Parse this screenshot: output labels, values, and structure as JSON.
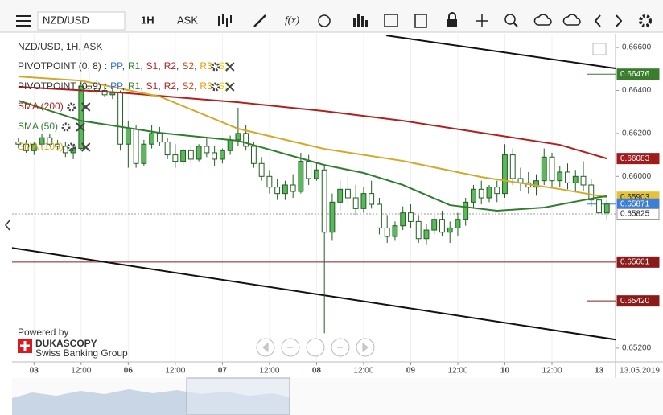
{
  "toolbar": {
    "symbol": "NZD/USD",
    "period": "1H",
    "side": "ASK",
    "fx": "f(x)"
  },
  "chart_data": {
    "type": "candlestick",
    "title": "NZD/USD, 1H, ASK",
    "legend": [
      {
        "name": "PIVOTPOINT (0, 8)",
        "color": "#333333",
        "pivot": true
      },
      {
        "name": "PIVOTPOINT (0, 9)",
        "color": "#333333",
        "pivot": true
      },
      {
        "name": "SMA (200)",
        "color": "#b0201e"
      },
      {
        "name": "SMA (50)",
        "color": "#2f7d2f"
      },
      {
        "name": "SMA (100)",
        "color": "#d4a82a"
      }
    ],
    "pivot_items": [
      {
        "text": ":",
        "color": "#333333"
      },
      {
        "text": "PP",
        "color": "#2f6fd6"
      },
      {
        "text": ",",
        "color": "#333333"
      },
      {
        "text": "R1",
        "color": "#2f7d2f"
      },
      {
        "text": ",",
        "color": "#333333"
      },
      {
        "text": "S1",
        "color": "#c62828"
      },
      {
        "text": ",",
        "color": "#333333"
      },
      {
        "text": "R2",
        "color": "#b0201e"
      },
      {
        "text": ",",
        "color": "#333333"
      },
      {
        "text": "S2",
        "color": "#d84315"
      },
      {
        "text": ",",
        "color": "#333333"
      },
      {
        "text": "R3",
        "color": "#e69a00"
      },
      {
        "text": ",",
        "color": "#333333"
      },
      {
        "text": "S3",
        "color": "#e0d000"
      }
    ],
    "up_color": "#5cb85c",
    "down_color": "#ffffff",
    "wick_color": "#1f5f1f",
    "candles": [
      [
        0.6616,
        0.6618,
        0.6613,
        0.6615
      ],
      [
        0.6615,
        0.6617,
        0.6611,
        0.6612
      ],
      [
        0.6612,
        0.6616,
        0.661,
        0.6615
      ],
      [
        0.6615,
        0.662,
        0.6614,
        0.6618
      ],
      [
        0.6618,
        0.662,
        0.6614,
        0.6615
      ],
      [
        0.6615,
        0.6617,
        0.6612,
        0.6614
      ],
      [
        0.6614,
        0.6616,
        0.6609,
        0.6611
      ],
      [
        0.6611,
        0.6615,
        0.6608,
        0.6613
      ],
      [
        0.6613,
        0.6645,
        0.6612,
        0.6642
      ],
      [
        0.6642,
        0.6649,
        0.6639,
        0.6641
      ],
      [
        0.6641,
        0.6645,
        0.6638,
        0.664
      ],
      [
        0.664,
        0.6643,
        0.6637,
        0.6638
      ],
      [
        0.6638,
        0.6642,
        0.6636,
        0.6639
      ],
      [
        0.6639,
        0.664,
        0.6612,
        0.6615
      ],
      [
        0.6615,
        0.6626,
        0.6604,
        0.6622
      ],
      [
        0.6622,
        0.6624,
        0.6604,
        0.6606
      ],
      [
        0.6606,
        0.6617,
        0.6605,
        0.6615
      ],
      [
        0.6615,
        0.6624,
        0.6613,
        0.662
      ],
      [
        0.662,
        0.6623,
        0.6614,
        0.6616
      ],
      [
        0.6616,
        0.6618,
        0.6608,
        0.661
      ],
      [
        0.661,
        0.6615,
        0.6604,
        0.6607
      ],
      [
        0.6607,
        0.6613,
        0.6605,
        0.6612
      ],
      [
        0.6612,
        0.6614,
        0.6606,
        0.6608
      ],
      [
        0.6608,
        0.6615,
        0.6607,
        0.6614
      ],
      [
        0.6614,
        0.6618,
        0.6609,
        0.6611
      ],
      [
        0.6611,
        0.6614,
        0.6605,
        0.6608
      ],
      [
        0.6608,
        0.6613,
        0.6606,
        0.6612
      ],
      [
        0.6612,
        0.6619,
        0.661,
        0.6617
      ],
      [
        0.6617,
        0.6632,
        0.6614,
        0.662
      ],
      [
        0.662,
        0.6624,
        0.6612,
        0.6614
      ],
      [
        0.6614,
        0.6616,
        0.6604,
        0.6606
      ],
      [
        0.6606,
        0.6609,
        0.6598,
        0.66
      ],
      [
        0.66,
        0.6603,
        0.6592,
        0.6595
      ],
      [
        0.6595,
        0.6599,
        0.6589,
        0.6592
      ],
      [
        0.6592,
        0.6598,
        0.6589,
        0.6596
      ],
      [
        0.6596,
        0.6601,
        0.659,
        0.6593
      ],
      [
        0.6593,
        0.6611,
        0.6592,
        0.6607
      ],
      [
        0.6607,
        0.661,
        0.6596,
        0.6599
      ],
      [
        0.6599,
        0.6606,
        0.6598,
        0.6603
      ],
      [
        0.6603,
        0.6605,
        0.6527,
        0.6574
      ],
      [
        0.6574,
        0.6592,
        0.657,
        0.6588
      ],
      [
        0.6588,
        0.6598,
        0.6584,
        0.6594
      ],
      [
        0.6594,
        0.66,
        0.6587,
        0.659
      ],
      [
        0.659,
        0.6596,
        0.6582,
        0.6585
      ],
      [
        0.6585,
        0.6595,
        0.6583,
        0.6592
      ],
      [
        0.6592,
        0.6598,
        0.6585,
        0.6587
      ],
      [
        0.6587,
        0.659,
        0.6573,
        0.6576
      ],
      [
        0.6576,
        0.6582,
        0.6569,
        0.6572
      ],
      [
        0.6572,
        0.6579,
        0.657,
        0.6577
      ],
      [
        0.6577,
        0.6586,
        0.6575,
        0.6583
      ],
      [
        0.6583,
        0.6587,
        0.6576,
        0.6579
      ],
      [
        0.6579,
        0.6582,
        0.6569,
        0.6571
      ],
      [
        0.6571,
        0.6578,
        0.6568,
        0.6575
      ],
      [
        0.6575,
        0.6582,
        0.6573,
        0.658
      ],
      [
        0.658,
        0.6584,
        0.6572,
        0.6574
      ],
      [
        0.6574,
        0.6579,
        0.6569,
        0.6576
      ],
      [
        0.6576,
        0.6583,
        0.6572,
        0.658
      ],
      [
        0.658,
        0.659,
        0.6577,
        0.6588
      ],
      [
        0.6588,
        0.6596,
        0.6585,
        0.6594
      ],
      [
        0.6594,
        0.6598,
        0.6587,
        0.659
      ],
      [
        0.659,
        0.6596,
        0.6588,
        0.6595
      ],
      [
        0.6595,
        0.6598,
        0.6588,
        0.6592
      ],
      [
        0.6592,
        0.6615,
        0.659,
        0.661
      ],
      [
        0.661,
        0.6613,
        0.6596,
        0.6599
      ],
      [
        0.6599,
        0.6604,
        0.6593,
        0.6597
      ],
      [
        0.6597,
        0.6602,
        0.6592,
        0.6595
      ],
      [
        0.6595,
        0.6601,
        0.6591,
        0.6598
      ],
      [
        0.6598,
        0.6613,
        0.6596,
        0.6609
      ],
      [
        0.6609,
        0.6611,
        0.6595,
        0.6598
      ],
      [
        0.6598,
        0.6605,
        0.6595,
        0.6602
      ],
      [
        0.6602,
        0.6606,
        0.6594,
        0.6597
      ],
      [
        0.6597,
        0.6603,
        0.6593,
        0.66
      ],
      [
        0.66,
        0.6607,
        0.6593,
        0.6596
      ],
      [
        0.6596,
        0.6599,
        0.6586,
        0.6589
      ],
      [
        0.6589,
        0.6592,
        0.658,
        0.6583
      ],
      [
        0.6583,
        0.6589,
        0.658,
        0.65871
      ]
    ],
    "series": [
      {
        "name": "SMA (200)",
        "color": "#b0201e",
        "x": [
          0,
          13,
          28,
          39,
          49,
          59,
          69,
          75
        ],
        "values": [
          0.66417,
          0.6639,
          0.66345,
          0.66304,
          0.66259,
          0.66203,
          0.66147,
          0.66083
        ]
      },
      {
        "name": "SMA (100)",
        "color": "#d4a82a",
        "x": [
          0,
          8,
          18,
          28,
          39,
          49,
          59,
          69,
          75
        ],
        "values": [
          0.66465,
          0.66446,
          0.66372,
          0.66222,
          0.66128,
          0.66072,
          0.65997,
          0.65941,
          0.65903
        ]
      },
      {
        "name": "SMA (50)",
        "color": "#2f7d2f",
        "x": [
          0,
          8,
          18,
          28,
          39,
          44,
          49,
          55,
          61,
          67,
          74,
          75
        ],
        "values": [
          0.66353,
          0.66259,
          0.66203,
          0.66166,
          0.66053,
          0.66016,
          0.6596,
          0.65866,
          0.6584,
          0.65855,
          0.65903,
          0.65908
        ]
      }
    ],
    "trendlines": [
      {
        "x": [
          46.9,
          76.1
        ],
        "values": [
          0.66656,
          0.66503
        ]
      },
      {
        "x": [
          -0.8,
          76.1
        ],
        "values": [
          0.65667,
          0.6524
        ]
      }
    ],
    "price_markers": [
      {
        "value": 0.66476,
        "label": "0.66476",
        "color": "#3a7d2c",
        "text_color": "#ffffff",
        "line_style": "short"
      },
      {
        "value": 0.66083,
        "label": "0.66083",
        "color": "#a01c1c",
        "text_color": "#ffffff",
        "line_style": "none"
      },
      {
        "value": 0.65903,
        "label": "0.65903",
        "color": "#e4c23a",
        "text_color": "#222222",
        "line_style": "none"
      },
      {
        "value": 0.65871,
        "label": "0.65871",
        "color": "#3d7fd6",
        "text_color": "#ffffff",
        "line_style": "short"
      },
      {
        "value": 0.65825,
        "label": "0.65825",
        "color": "#ffffff",
        "text_color": "#222222",
        "line_style": "dashed"
      },
      {
        "value": 0.65601,
        "label": "0.65601",
        "color": "#8b1a1a",
        "text_color": "#ffffff",
        "line_style": "full"
      },
      {
        "value": 0.6542,
        "label": "0.65420",
        "color": "#8b1a1a",
        "text_color": "#ffffff",
        "line_style": "short"
      }
    ],
    "xlim": [
      -0.8,
      76.1
    ],
    "ylim": [
      0.65136,
      0.66664
    ],
    "yticks": [
      {
        "value": 0.666,
        "label": "0.66600"
      },
      {
        "value": 0.664,
        "label": "0.66400"
      },
      {
        "value": 0.662,
        "label": "0.66200"
      },
      {
        "value": 0.66,
        "label": "0.66000"
      },
      {
        "value": 0.652,
        "label": "0.65200"
      }
    ],
    "xticks": [
      {
        "value": 2,
        "label": "03"
      },
      {
        "value": 8,
        "label": "12:00"
      },
      {
        "value": 14,
        "label": "06"
      },
      {
        "value": 20,
        "label": "12:00"
      },
      {
        "value": 26,
        "label": "07"
      },
      {
        "value": 32,
        "label": "12:00"
      },
      {
        "value": 38,
        "label": "08"
      },
      {
        "value": 44,
        "label": "12:00"
      },
      {
        "value": 50,
        "label": "09"
      },
      {
        "value": 56,
        "label": "12:00"
      },
      {
        "value": 62,
        "label": "10"
      },
      {
        "value": 68,
        "label": "12:00"
      },
      {
        "value": 74,
        "label": "13"
      }
    ],
    "date_label": "13.05.2019",
    "grid": true
  },
  "branding": {
    "powered": "Powered by",
    "name": "DUKASCOPY",
    "tagline": "Swiss Banking Group"
  }
}
